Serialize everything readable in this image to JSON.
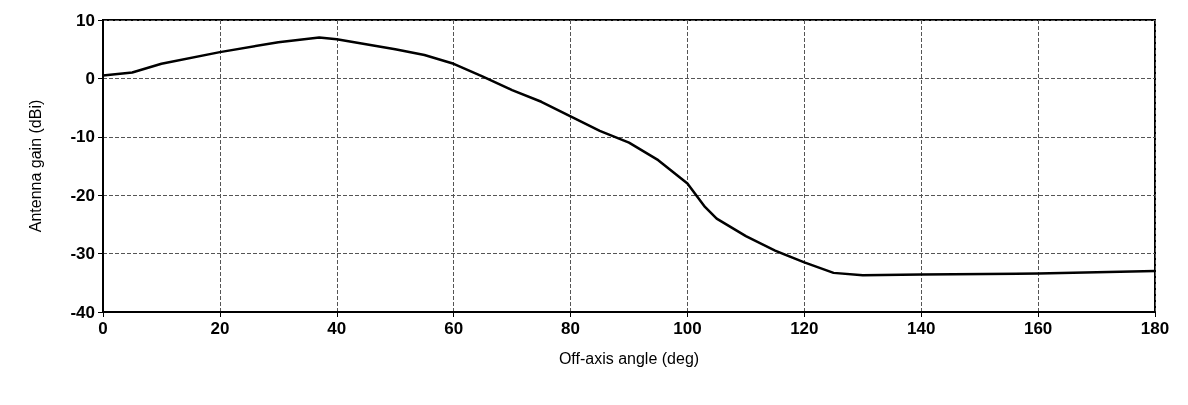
{
  "chart_data": {
    "type": "line",
    "xlabel": "Off-axis angle (deg)",
    "ylabel": "Antenna gain (dBi)",
    "x": [
      0,
      5,
      10,
      20,
      30,
      37,
      40,
      50,
      55,
      60,
      65,
      70,
      75,
      80,
      85,
      90,
      95,
      100,
      103,
      105,
      110,
      115,
      120,
      125,
      130,
      140,
      160,
      180
    ],
    "series": [
      {
        "color": "#000000",
        "values": [
          0.5,
          1,
          2.5,
          4.5,
          6.2,
          7,
          6.7,
          5,
          4,
          2.5,
          0.3,
          -2,
          -4,
          -6.5,
          -9,
          -11,
          -14,
          -18,
          -22,
          -24,
          -27,
          -29.5,
          -31.5,
          -33.3,
          -33.7,
          -33.6,
          -33.4,
          -33
        ]
      }
    ],
    "xlim": [
      0,
      180
    ],
    "xticks": [
      0,
      20,
      40,
      60,
      80,
      100,
      120,
      140,
      160,
      180
    ],
    "ylim": [
      -40,
      10
    ],
    "yticks": [
      -40,
      -30,
      -20,
      -10,
      0,
      10
    ],
    "grid": true,
    "marker": "none",
    "line_style": "solid"
  }
}
